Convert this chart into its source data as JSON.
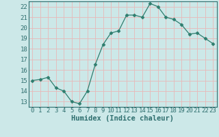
{
  "x": [
    0,
    1,
    2,
    3,
    4,
    5,
    6,
    7,
    8,
    9,
    10,
    11,
    12,
    13,
    14,
    15,
    16,
    17,
    18,
    19,
    20,
    21,
    22,
    23
  ],
  "y": [
    15.0,
    15.1,
    15.3,
    14.3,
    14.0,
    13.0,
    12.8,
    14.0,
    16.5,
    18.4,
    19.5,
    19.7,
    21.2,
    21.2,
    21.0,
    22.3,
    22.0,
    21.0,
    20.8,
    20.3,
    19.4,
    19.5,
    19.0,
    18.5
  ],
  "line_color": "#2e7d6e",
  "marker": "D",
  "marker_size": 2.5,
  "bg_color": "#cce8e8",
  "grid_color": "#e8b8b8",
  "xlabel": "Humidex (Indice chaleur)",
  "xlim": [
    -0.5,
    23.5
  ],
  "ylim": [
    12.5,
    22.5
  ],
  "yticks": [
    13,
    14,
    15,
    16,
    17,
    18,
    19,
    20,
    21,
    22
  ],
  "xticks": [
    0,
    1,
    2,
    3,
    4,
    5,
    6,
    7,
    8,
    9,
    10,
    11,
    12,
    13,
    14,
    15,
    16,
    17,
    18,
    19,
    20,
    21,
    22,
    23
  ],
  "xlabel_fontsize": 7.5,
  "tick_fontsize": 6.5,
  "tick_color": "#2e6e6e"
}
